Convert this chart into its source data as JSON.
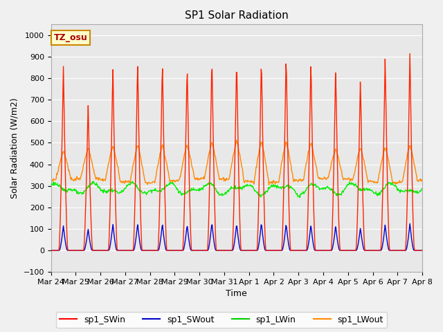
{
  "title": "SP1 Solar Radiation",
  "xlabel": "Time",
  "ylabel": "Solar Radiation (W/m2)",
  "ylim": [
    -100,
    1050
  ],
  "num_days": 15,
  "x_tick_labels": [
    "Mar 24",
    "Mar 25",
    "Mar 26",
    "Mar 27",
    "Mar 28",
    "Mar 29",
    "Mar 30",
    "Mar 31",
    "Apr 1",
    "Apr 2",
    "Apr 3",
    "Apr 4",
    "Apr 5",
    "Apr 6",
    "Apr 7",
    "Apr 8"
  ],
  "annotation_text": "TZ_osu",
  "annotation_bg": "#ffffcc",
  "annotation_border": "#cc8800",
  "legend_entries": [
    "sp1_SWin",
    "sp1_SWout",
    "sp1_LWin",
    "sp1_LWout"
  ],
  "legend_colors": [
    "#ff0000",
    "#0000cc",
    "#00cc00",
    "#ff8800"
  ],
  "line_colors": {
    "sp1_SWin": "#ff2200",
    "sp1_SWout": "#0000cc",
    "sp1_LWin": "#00ee00",
    "sp1_LWout": "#ff8800"
  },
  "fig_bg_color": "#f0f0f0",
  "plot_bg_color": "#e8e8e8",
  "grid_color": "#ffffff",
  "title_fontsize": 11,
  "axis_label_fontsize": 9,
  "tick_fontsize": 8,
  "legend_fontsize": 9,
  "SWin_peaks": [
    860,
    685,
    865,
    890,
    890,
    875,
    910,
    905,
    910,
    925,
    900,
    860,
    805,
    905,
    920
  ],
  "SWout_peaks": [
    115,
    100,
    125,
    125,
    125,
    120,
    130,
    125,
    130,
    125,
    120,
    115,
    105,
    120,
    125
  ],
  "LWout_day_peaks": [
    460,
    475,
    485,
    490,
    490,
    490,
    500,
    510,
    505,
    505,
    500,
    470,
    475,
    480,
    490
  ],
  "LWout_night_base": 325,
  "LWin_base": 285
}
